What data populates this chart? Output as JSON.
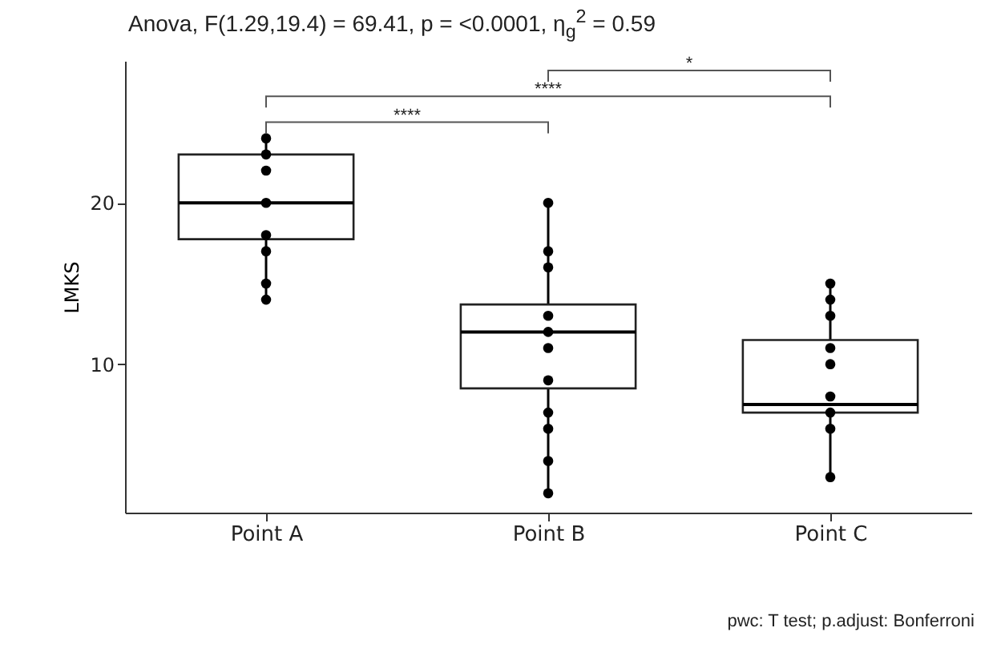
{
  "chart_data": {
    "type": "box",
    "title": "Anova, F(1.29,19.4) = 69.41, p = <0.0001, η$_{g}$$^{2}$ = 0.59",
    "ylabel": "LMKS",
    "categories": [
      "Point A",
      "Point B",
      "Point C"
    ],
    "boxes": [
      {
        "low": 14,
        "q1": 17.75,
        "median": 20,
        "q3": 23,
        "high": 24
      },
      {
        "low": 2,
        "q1": 8.5,
        "median": 12,
        "q3": 13.7,
        "high": 20
      },
      {
        "low": 3,
        "q1": 7,
        "median": 7.5,
        "q3": 11.5,
        "high": 15
      }
    ],
    "series": [
      {
        "type": "scatter",
        "color": "#000000",
        "x": [
          "Point A",
          "Point A",
          "Point A",
          "Point A",
          "Point A",
          "Point A",
          "Point A",
          "Point A",
          "Point B",
          "Point B",
          "Point B",
          "Point B",
          "Point B",
          "Point B",
          "Point B",
          "Point B",
          "Point B",
          "Point B",
          "Point B",
          "Point C",
          "Point C",
          "Point C",
          "Point C",
          "Point C",
          "Point C",
          "Point C",
          "Point C",
          "Point C"
        ],
        "values": [
          24,
          23,
          22,
          20,
          18,
          17,
          15,
          14,
          20,
          17,
          16,
          13,
          12,
          11,
          9,
          7,
          6,
          4,
          2,
          15,
          14,
          13,
          11,
          10,
          8,
          7,
          6,
          3
        ]
      }
    ],
    "ylim": [
      0.8,
      28.8
    ],
    "yticks": [
      10,
      20
    ],
    "grid": false,
    "marker": "circle",
    "annotations": [
      "****",
      "****",
      "*",
      "pwc: T test; p.adjust: Bonferroni"
    ]
  }
}
